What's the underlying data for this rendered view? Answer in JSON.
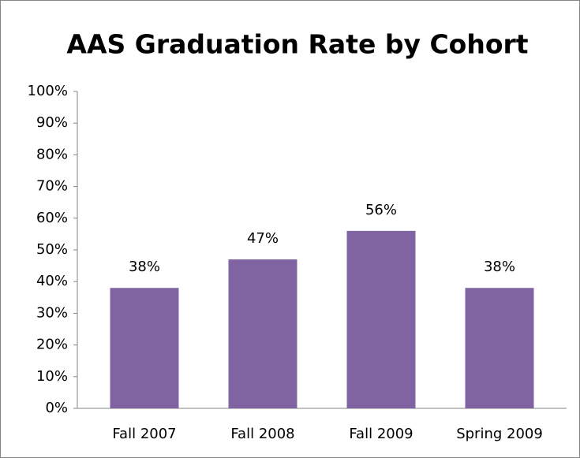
{
  "chart_data": {
    "type": "bar",
    "title": "AAS Graduation Rate by Cohort",
    "categories": [
      "Fall 2007",
      "Fall 2008",
      "Fall 2009",
      "Spring 2009"
    ],
    "values": [
      38,
      47,
      56,
      38
    ],
    "value_labels": [
      "38%",
      "47%",
      "56%",
      "38%"
    ],
    "color": "#8064a2",
    "ylim": [
      0,
      100
    ],
    "yticks": [
      {
        "value": 0,
        "label": "0%"
      },
      {
        "value": 10,
        "label": "10%"
      },
      {
        "value": 20,
        "label": "20%"
      },
      {
        "value": 30,
        "label": "30%"
      },
      {
        "value": 40,
        "label": "40%"
      },
      {
        "value": 50,
        "label": "50%"
      },
      {
        "value": 60,
        "label": "60%"
      },
      {
        "value": 70,
        "label": "70%"
      },
      {
        "value": 80,
        "label": "80%"
      },
      {
        "value": 90,
        "label": "90%"
      },
      {
        "value": 100,
        "label": "100%"
      }
    ],
    "grid": false
  }
}
